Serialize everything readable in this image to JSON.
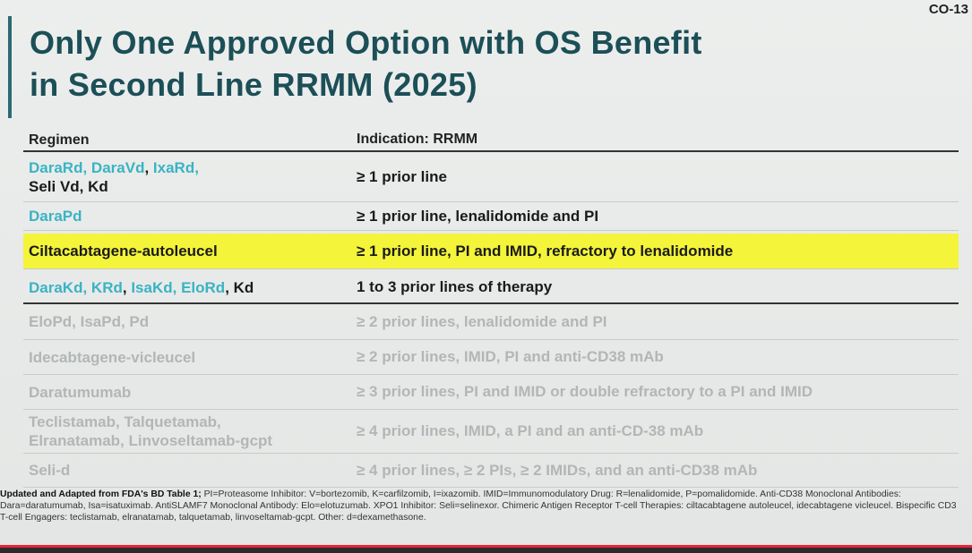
{
  "slide_id": "CO-13",
  "title": [
    "Only One Approved Option with OS Benefit",
    "in Second Line RRMM (2025)"
  ],
  "table": {
    "header": [
      "Regimen",
      "Indication: RRMM"
    ],
    "rows": [
      {
        "regimen": [
          [
            {
              "text": "DaraRd",
              "teal": true
            },
            {
              "text": ", ",
              "teal": true
            },
            {
              "text": "DaraVd",
              "teal": true
            },
            {
              "text": ", ",
              "teal": false
            },
            {
              "text": "IxaRd,",
              "teal": true
            }
          ],
          [
            {
              "text": "Seli Vd, Kd",
              "teal": false
            }
          ]
        ],
        "indication": "≥ 1 prior line",
        "highlight": false,
        "muted": false
      },
      {
        "regimen": [
          [
            {
              "text": "DaraPd",
              "teal": true
            }
          ]
        ],
        "indication": "≥ 1 prior line, lenalidomide and PI",
        "highlight": false,
        "muted": false
      },
      {
        "regimen": [
          [
            {
              "text": "Ciltacabtagene-autoleucel",
              "teal": false
            }
          ]
        ],
        "indication": "≥ 1 prior line, PI and IMID, refractory to lenalidomide",
        "highlight": true,
        "muted": false
      },
      {
        "regimen": [
          [
            {
              "text": "DaraKd",
              "teal": true
            },
            {
              "text": ", ",
              "teal": true
            },
            {
              "text": "KRd",
              "teal": true
            },
            {
              "text": ", ",
              "teal": false
            },
            {
              "text": "IsaKd",
              "teal": true
            },
            {
              "text": ", ",
              "teal": true
            },
            {
              "text": "EloRd",
              "teal": true
            },
            {
              "text": ", Kd",
              "teal": false
            }
          ]
        ],
        "indication": "1 to 3 prior lines of therapy",
        "highlight": false,
        "muted": false
      },
      {
        "regimen": [
          [
            {
              "text": "EloPd, IsaPd, Pd",
              "teal": false
            }
          ]
        ],
        "indication": "≥ 2 prior lines, lenalidomide and PI",
        "highlight": false,
        "muted": true
      },
      {
        "regimen": [
          [
            {
              "text": "Idecabtagene-vicleucel",
              "teal": false
            }
          ]
        ],
        "indication": "≥ 2 prior lines, IMID, PI and anti-CD38 mAb",
        "highlight": false,
        "muted": true
      },
      {
        "regimen": [
          [
            {
              "text": "Daratumumab",
              "teal": false
            }
          ]
        ],
        "indication": "≥ 3 prior lines, PI and IMID or double refractory to a PI and IMID",
        "highlight": false,
        "muted": true
      },
      {
        "regimen": [
          [
            {
              "text": "Teclistamab, Talquetamab,",
              "teal": false
            }
          ],
          [
            {
              "text": "Elranatamab, Linvoseltamab-gcpt",
              "teal": false
            }
          ]
        ],
        "indication": "≥ 4 prior lines, IMID, a PI and an anti-CD-38 mAb",
        "highlight": false,
        "muted": true
      },
      {
        "regimen": [
          [
            {
              "text": "Seli-d",
              "teal": false
            }
          ]
        ],
        "indication": "≥ 4 prior lines, ≥ 2 PIs, ≥ 2 IMIDs, and an anti-CD38 mAb",
        "highlight": false,
        "muted": true
      }
    ]
  },
  "footnote": {
    "source": "Updated and Adapted from FDA's BD Table 1;",
    "text": "PI=Proteasome Inhibitor: V=bortezomib, K=carfilzomib, I=ixazomib. IMID=Immunomodulatory Drug: R=lenalidomide, P=pomalidomide. Anti-CD38 Monoclonal Antibodies: Dara=daratumumab, Isa=isatuximab. AntiSLAMF7 Monoclonal Antibody: Elo=elotuzumab. XPO1 Inhibitor: Seli=selinexor. Chimeric Antigen Receptor T-cell Therapies: ciltacabtagene autoleucel, idecabtagene vicleucel. Bispecific CD3 T-cell Engagers: teclistamab, elranatamab, talquetamab, linvoseltamab-gcpt. Other: d=dexamethasone."
  }
}
